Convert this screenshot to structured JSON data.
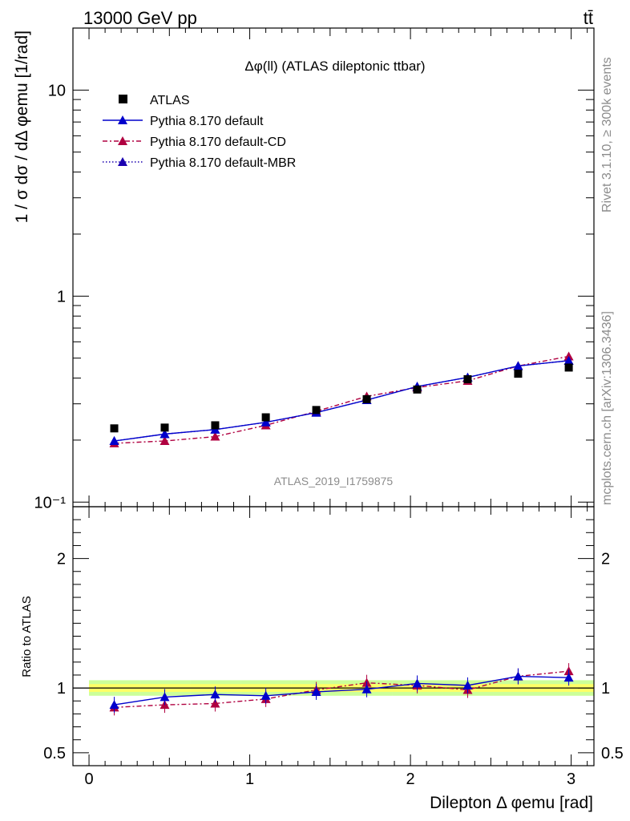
{
  "header": {
    "left": "13000 GeV pp",
    "right": "tt̄"
  },
  "side": {
    "rivet": "Rivet 3.1.10, ≥ 300k events",
    "mcplots": "mcplots.cern.ch [arXiv:1306.3436]"
  },
  "chart_data": [
    {
      "type": "scatter",
      "title": "Δφ(ll) (ATLAS dileptonic ttbar)",
      "analysis_label": "ATLAS_2019_I1759875",
      "ylabel": "1 / σ  dσ / dΔ φemu [1/rad]",
      "yscale": "log",
      "xlim": [
        -0.1,
        3.1416
      ],
      "ylim": [
        0.095,
        20
      ],
      "y_ticks": [
        {
          "value": 0.1,
          "label": "10⁻¹"
        },
        {
          "value": 1,
          "label": "1"
        },
        {
          "value": 10,
          "label": "10"
        }
      ],
      "legend_position": "top-left",
      "x": [
        0.157,
        0.471,
        0.785,
        1.1,
        1.414,
        1.728,
        2.042,
        2.356,
        2.67,
        2.985
      ],
      "series": [
        {
          "name": "ATLAS",
          "style": "marker",
          "color": "#000000",
          "values": [
            0.228,
            0.23,
            0.236,
            0.258,
            0.28,
            0.316,
            0.352,
            0.395,
            0.42,
            0.45
          ]
        },
        {
          "name": "Pythia 8.170 default",
          "style": "solid",
          "color": "#0000cc",
          "values": [
            0.198,
            0.214,
            0.225,
            0.244,
            0.272,
            0.313,
            0.364,
            0.403,
            0.458,
            0.486
          ]
        },
        {
          "name": "Pythia 8.170 default-CD",
          "style": "dashdot",
          "color": "#b00040",
          "values": [
            0.193,
            0.198,
            0.208,
            0.236,
            0.276,
            0.326,
            0.36,
            0.388,
            0.458,
            0.51
          ]
        },
        {
          "name": "Pythia 8.170 default-MBR",
          "style": "dotted",
          "color": "#1a00b0",
          "values": [
            0.198,
            0.214,
            0.225,
            0.244,
            0.272,
            0.313,
            0.364,
            0.403,
            0.458,
            0.486
          ]
        }
      ]
    },
    {
      "type": "scatter",
      "xlabel": "Dilepton Δ φemu [rad]",
      "ylabel": "Ratio to ATLAS",
      "xlim": [
        -0.1,
        3.1416
      ],
      "ylim": [
        0.4,
        2.4
      ],
      "x_ticks": [
        0,
        1,
        2,
        3
      ],
      "y_ticks": [
        0.5,
        1,
        2
      ],
      "x": [
        0.157,
        0.471,
        0.785,
        1.1,
        1.414,
        1.728,
        2.042,
        2.356,
        2.67,
        2.985
      ],
      "band": {
        "inner": 0.03,
        "outer": 0.06,
        "inner_color": "#ffff66",
        "outer_color": "#ccff99"
      },
      "series": [
        {
          "name": "Pythia 8.170 default",
          "style": "solid",
          "color": "#0000cc",
          "values": [
            0.87,
            0.93,
            0.95,
            0.94,
            0.97,
            0.99,
            1.035,
            1.02,
            1.09,
            1.08
          ]
        },
        {
          "name": "Pythia 8.170 default-CD",
          "style": "dashdot",
          "color": "#b00040",
          "values": [
            0.85,
            0.87,
            0.88,
            0.915,
            0.985,
            1.04,
            1.02,
            0.985,
            1.09,
            1.13
          ]
        }
      ]
    }
  ]
}
